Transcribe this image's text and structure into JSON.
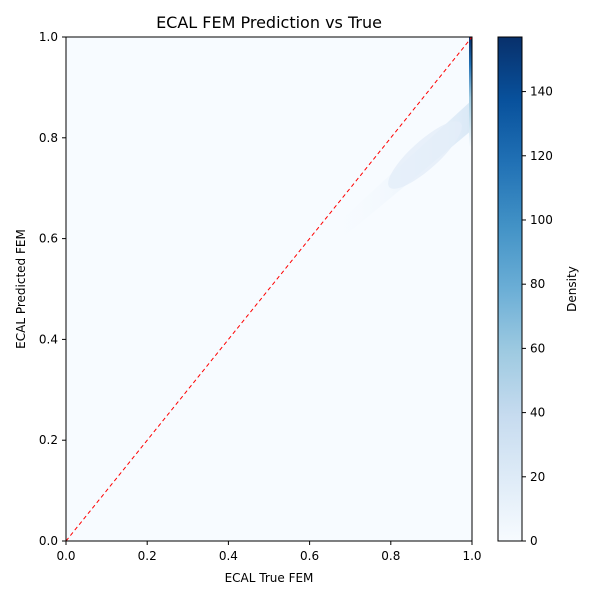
{
  "chart_data": {
    "type": "heatmap",
    "title": "ECAL FEM Prediction vs True",
    "xlabel": "ECAL True FEM",
    "ylabel": "ECAL Predicted FEM",
    "xlim": [
      0.0,
      1.0
    ],
    "ylim": [
      0.0,
      1.0
    ],
    "x_ticks": [
      "0.0",
      "0.2",
      "0.4",
      "0.6",
      "0.8",
      "1.0"
    ],
    "y_ticks": [
      "0.0",
      "0.2",
      "0.4",
      "0.6",
      "0.8",
      "1.0"
    ],
    "grid": false,
    "reference_line": {
      "style": "dashed",
      "color": "#ff0000",
      "from": [
        0.0,
        0.0
      ],
      "to": [
        1.0,
        1.0
      ]
    },
    "colorbar": {
      "label": "Density",
      "colormap": "Blues",
      "range": [
        0,
        157
      ],
      "ticks": [
        "0",
        "20",
        "40",
        "60",
        "80",
        "100",
        "120",
        "140"
      ],
      "tick_values": [
        0,
        20,
        40,
        60,
        80,
        100,
        120,
        140
      ]
    },
    "density_features": [
      {
        "description": "high-density column at true FEM = 1.0",
        "x": 1.0,
        "y_range": [
          0.8,
          1.0
        ],
        "peak": 157
      },
      {
        "description": "faint band along diagonal",
        "x_range": [
          0.65,
          1.0
        ],
        "peak": 8
      }
    ]
  }
}
